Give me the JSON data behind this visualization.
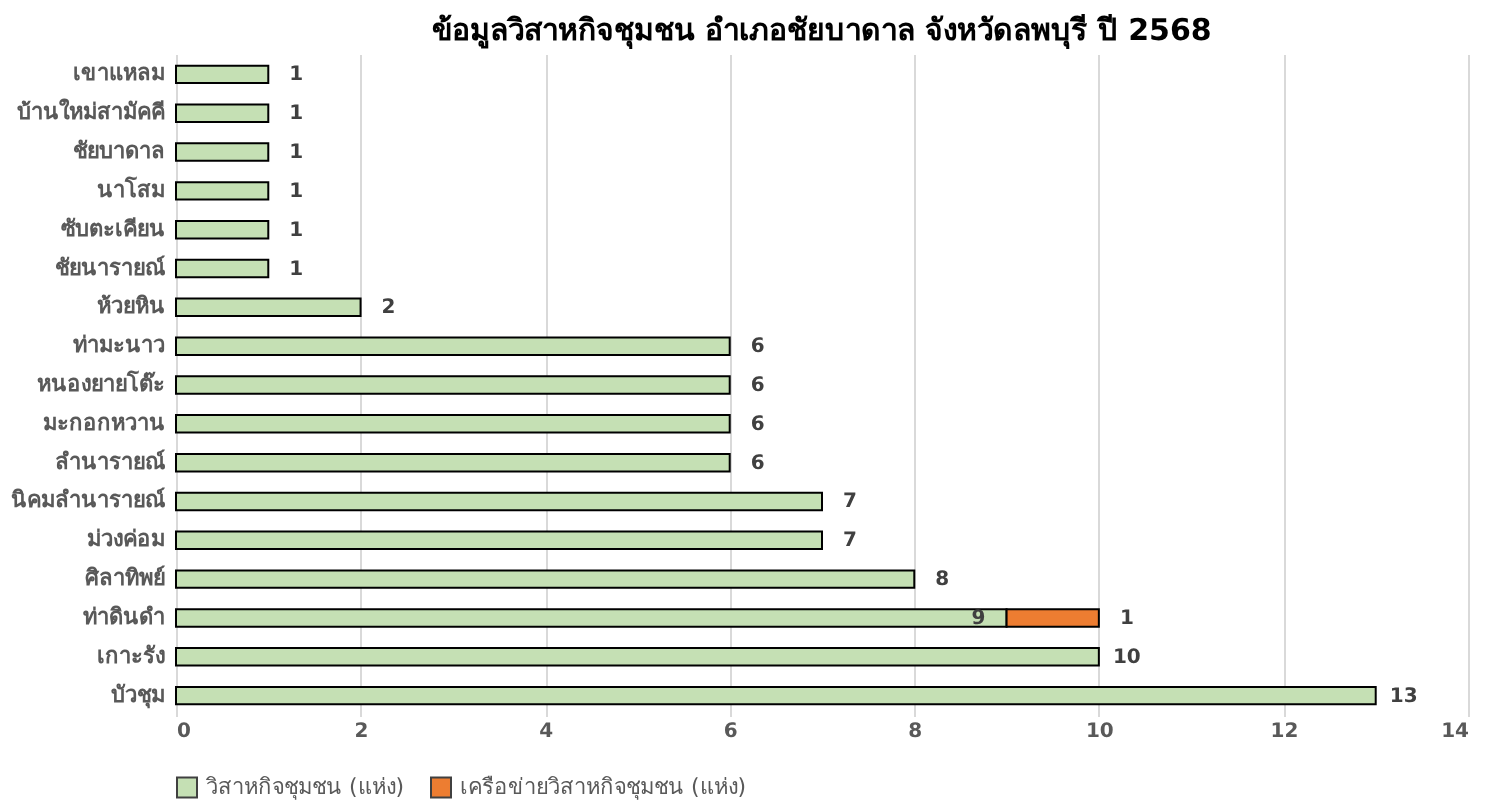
{
  "chart_data": {
    "type": "bar",
    "orientation": "horizontal",
    "stacked": true,
    "title": "ข้อมูลวิสาหกิจชุมชน อำเภอชัยบาดาล จังหวัดลพบุรี ปี 2568",
    "categories": [
      "เขาแหลม",
      "บ้านใหม่สามัคคี",
      "ชัยบาดาล",
      "นาโสม",
      "ซับตะเคียน",
      "ชัยนารายณ์",
      "ห้วยหิน",
      "ท่ามะนาว",
      "หนองยายโต๊ะ",
      "มะกอกหวาน",
      "ลำนารายณ์",
      "นิคมลำนารายณ์",
      "ม่วงค่อม",
      "ศิลาทิพย์",
      "ท่าดินดำ",
      "เกาะรัง",
      "บัวชุม"
    ],
    "series": [
      {
        "name": "วิสาหกิจชุมชน (แห่ง)",
        "color": "#c5e0b4",
        "values": [
          1,
          1,
          1,
          1,
          1,
          1,
          2,
          6,
          6,
          6,
          6,
          7,
          7,
          8,
          9,
          10,
          13
        ]
      },
      {
        "name": "เครือข่ายวิสาหกิจชุมชน (แห่ง)",
        "color": "#ed7d31",
        "values": [
          null,
          null,
          null,
          null,
          null,
          null,
          null,
          null,
          null,
          null,
          null,
          null,
          null,
          null,
          1,
          null,
          null
        ]
      }
    ],
    "xlim": [
      0,
      14
    ],
    "xticks": [
      0,
      2,
      4,
      6,
      8,
      10,
      12,
      14
    ],
    "grid": "x",
    "legend": "bottom",
    "data_labels": true
  }
}
